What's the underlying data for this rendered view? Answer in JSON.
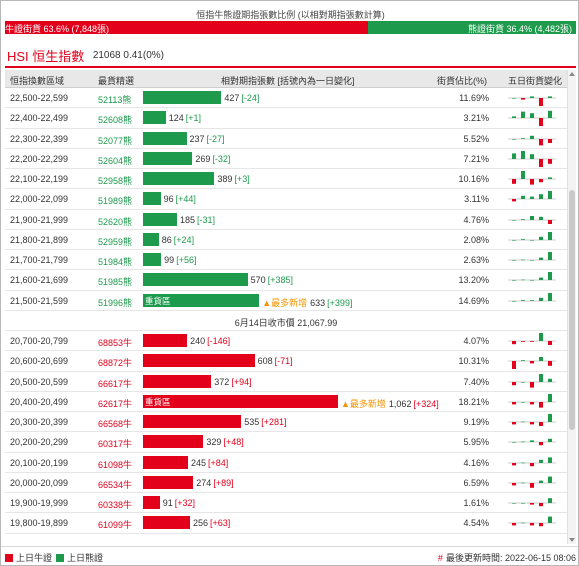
{
  "header": {
    "title": "恒指牛熊證期指張數比例 (以相對期指張數計算)",
    "bull_label": "牛證街貨 63.6% (7,848張)",
    "bear_label": "熊證街貨 36.4% (4,482張)",
    "bull_ratio": 0.636
  },
  "index": {
    "name": "HSI 恒生指數",
    "value": "21068 0.41(0%)"
  },
  "columns": {
    "range": "恒指換數區域",
    "code": "最貨精選",
    "contracts": "相對期指張數 [括號內為一日變化]",
    "pct": "街貨佔比(%)",
    "trend": "五日街貨變化"
  },
  "labels": {
    "zhong": "重貨區",
    "hot": "▲最多新增"
  },
  "midline": "6月14日收市價 21,067.99",
  "colors": {
    "bull": "#e3001b",
    "bear": "#1e9a4c",
    "hot": "#f59300",
    "header_bg": "#e8e8e8"
  },
  "bear_rows": [
    {
      "range": "22,500-22,599",
      "code": "52113熊",
      "contracts": "427",
      "change": "[-24]",
      "pct": "11.69%",
      "zhong": false,
      "hot": false,
      "trend": [
        0,
        -0.2,
        0.2,
        -1,
        0.2
      ]
    },
    {
      "range": "22,400-22,499",
      "code": "52608熊",
      "contracts": "124",
      "change": "[+1]",
      "pct": "3.21%",
      "zhong": false,
      "hot": false,
      "trend": [
        0.2,
        0.8,
        0.6,
        -1,
        0.9
      ]
    },
    {
      "range": "22,300-22,399",
      "code": "52077熊",
      "contracts": "237",
      "change": "[-27]",
      "pct": "5.52%",
      "zhong": false,
      "hot": false,
      "trend": [
        0,
        0.1,
        0.4,
        -0.8,
        -0.5
      ]
    },
    {
      "range": "22,200-22,299",
      "code": "52604熊",
      "contracts": "269",
      "change": "[-32]",
      "pct": "7.21%",
      "zhong": false,
      "hot": false,
      "trend": [
        0.7,
        1,
        0.6,
        -1,
        -0.6
      ]
    },
    {
      "range": "22,100-22,199",
      "code": "52958熊",
      "contracts": "389",
      "change": "[+3]",
      "pct": "10.16%",
      "zhong": false,
      "hot": false,
      "trend": [
        -0.6,
        1,
        -0.7,
        -0.4,
        0.2
      ]
    },
    {
      "range": "22,000-22,099",
      "code": "51989熊",
      "contracts": "96",
      "change": "[+44]",
      "pct": "3.11%",
      "zhong": false,
      "hot": false,
      "trend": [
        -0.3,
        0.4,
        0.3,
        0.6,
        1
      ]
    },
    {
      "range": "21,900-21,999",
      "code": "52620熊",
      "contracts": "185",
      "change": "[-31]",
      "pct": "4.76%",
      "zhong": false,
      "hot": false,
      "trend": [
        0,
        0.1,
        0.5,
        0.4,
        -0.5
      ]
    },
    {
      "range": "21,800-21,899",
      "code": "52959熊",
      "contracts": "86",
      "change": "[+24]",
      "pct": "2.08%",
      "zhong": false,
      "hot": false,
      "trend": [
        0,
        0.1,
        0,
        0.4,
        1
      ]
    },
    {
      "range": "21,700-21,799",
      "code": "51984熊",
      "contracts": "99",
      "change": "[+56]",
      "pct": "2.63%",
      "zhong": false,
      "hot": false,
      "trend": [
        0,
        0.05,
        0,
        0.3,
        1
      ]
    },
    {
      "range": "21,600-21,699",
      "code": "51985熊",
      "contracts": "570",
      "change": "[+385]",
      "pct": "13.20%",
      "zhong": false,
      "hot": false,
      "trend": [
        0,
        0.05,
        0,
        0.3,
        1
      ]
    },
    {
      "range": "21,500-21,599",
      "code": "51996熊",
      "contracts": "633",
      "change": "[+399]",
      "pct": "14.69%",
      "zhong": true,
      "hot": true,
      "trend": [
        0,
        0.1,
        0.1,
        0.4,
        1
      ]
    }
  ],
  "bull_rows": [
    {
      "range": "20,700-20,799",
      "code": "68853牛",
      "contracts": "240",
      "change": "[-146]",
      "pct": "4.07%",
      "zhong": false,
      "hot": false,
      "trend": [
        -0.4,
        -0.1,
        -0.1,
        1,
        -0.5
      ]
    },
    {
      "range": "20,600-20,699",
      "code": "68872牛",
      "contracts": "608",
      "change": "[-71]",
      "pct": "10.31%",
      "zhong": false,
      "hot": false,
      "trend": [
        -1,
        0.1,
        -0.3,
        0.5,
        -0.6
      ]
    },
    {
      "range": "20,500-20,599",
      "code": "66617牛",
      "contracts": "372",
      "change": "[+94]",
      "pct": "7.40%",
      "zhong": false,
      "hot": false,
      "trend": [
        -0.4,
        0,
        -0.7,
        1,
        0.4
      ]
    },
    {
      "range": "20,400-20,499",
      "code": "62617牛",
      "contracts": "1,062",
      "change": "[+324]",
      "pct": "18.21%",
      "zhong": true,
      "hot": true,
      "trend": [
        -0.3,
        0,
        -0.3,
        -0.7,
        1
      ]
    },
    {
      "range": "20,300-20,399",
      "code": "66568牛",
      "contracts": "535",
      "change": "[+281]",
      "pct": "9.19%",
      "zhong": false,
      "hot": false,
      "trend": [
        -0.3,
        0.05,
        -0.3,
        -0.5,
        1
      ]
    },
    {
      "range": "20,200-20,299",
      "code": "60317牛",
      "contracts": "329",
      "change": "[+48]",
      "pct": "5.95%",
      "zhong": false,
      "hot": false,
      "trend": [
        0,
        0.05,
        0.2,
        -0.4,
        0.4
      ]
    },
    {
      "range": "20,100-20,199",
      "code": "61098牛",
      "contracts": "245",
      "change": "[+84]",
      "pct": "4.16%",
      "zhong": false,
      "hot": false,
      "trend": [
        -0.3,
        0.05,
        -0.4,
        0.4,
        0.7
      ]
    },
    {
      "range": "20,000-20,099",
      "code": "66534牛",
      "contracts": "274",
      "change": "[+89]",
      "pct": "6.59%",
      "zhong": false,
      "hot": false,
      "trend": [
        -0.3,
        0.05,
        -0.6,
        0.3,
        0.8
      ]
    },
    {
      "range": "19,900-19,999",
      "code": "60338牛",
      "contracts": "91",
      "change": "[+32]",
      "pct": "1.61%",
      "zhong": false,
      "hot": false,
      "trend": [
        0,
        0,
        -0.2,
        -0.4,
        0.6
      ]
    },
    {
      "range": "19,800-19,899",
      "code": "61099牛",
      "contracts": "256",
      "change": "[+63]",
      "pct": "4.54%",
      "zhong": false,
      "hot": false,
      "trend": [
        -0.3,
        0.05,
        -0.3,
        -0.4,
        0.8
      ]
    }
  ],
  "footer": {
    "bull_legend": "上日牛證",
    "bear_legend": "上日熊證",
    "updated": "最後更新時間: 2022-06-15 08:06"
  }
}
